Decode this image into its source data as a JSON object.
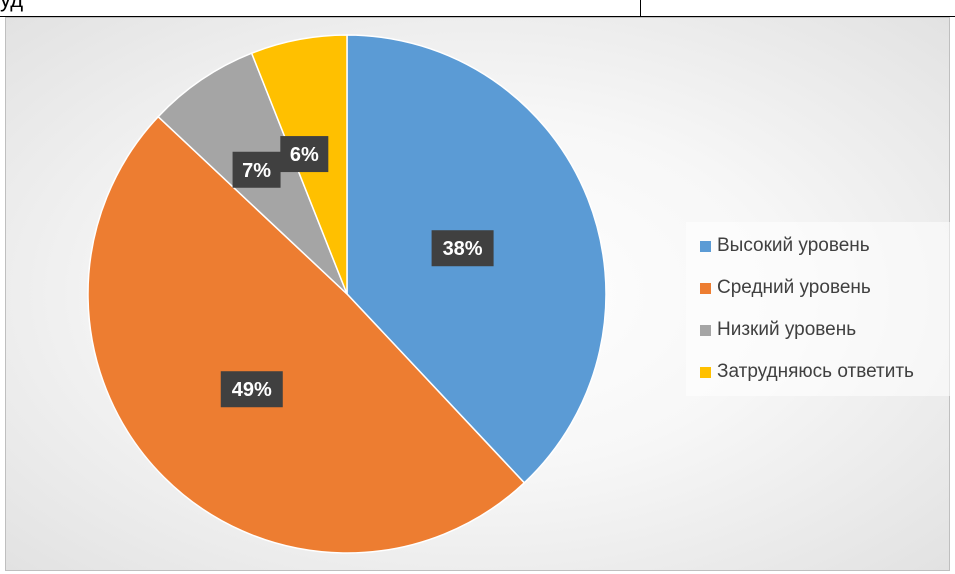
{
  "page_header": {
    "fragment": "уд"
  },
  "colors": {
    "high": "#5B9BD5",
    "medium": "#ED7D31",
    "low": "#A5A5A5",
    "unsure": "#FFC000",
    "label_bg": "#404040",
    "label_text": "#ffffff"
  },
  "chart_data": {
    "type": "pie",
    "title": "",
    "categories": [
      "Высокий уровень",
      "Средний уровень",
      "Низкий уровень",
      "Затрудняюсь ответить"
    ],
    "values": [
      38,
      49,
      7,
      6
    ],
    "data_labels": [
      "38%",
      "49%",
      "7%",
      "6%"
    ],
    "legend_position": "right"
  }
}
